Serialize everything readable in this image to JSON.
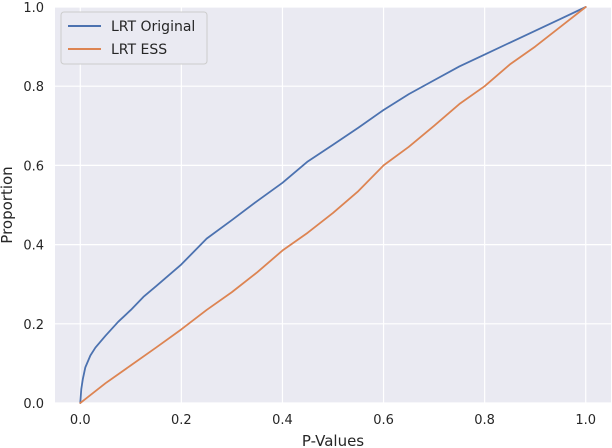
{
  "chart_data": {
    "type": "line",
    "title": "",
    "xlabel": "P-Values",
    "ylabel": "Proportion",
    "xlim": [
      -0.05,
      1.05
    ],
    "ylim": [
      0.0,
      1.0
    ],
    "xticks": [
      "0.0",
      "0.2",
      "0.4",
      "0.6",
      "0.8",
      "1.0"
    ],
    "yticks": [
      "0.0",
      "0.2",
      "0.4",
      "0.6",
      "0.8",
      "1.0"
    ],
    "grid": true,
    "legend": "top-left",
    "colors": {
      "background": "#eaeaf2",
      "grid": "#ffffff",
      "LRT Original": "#4c72b0",
      "LRT ESS": "#dd8452"
    },
    "series": [
      {
        "name": "LRT Original",
        "x": [
          0.0,
          0.002,
          0.005,
          0.01,
          0.02,
          0.03,
          0.05,
          0.075,
          0.1,
          0.125,
          0.15,
          0.2,
          0.25,
          0.3,
          0.35,
          0.4,
          0.45,
          0.5,
          0.55,
          0.6,
          0.65,
          0.7,
          0.75,
          0.8,
          0.85,
          0.9,
          0.95,
          1.0
        ],
        "y": [
          0.0,
          0.035,
          0.06,
          0.09,
          0.12,
          0.14,
          0.17,
          0.205,
          0.235,
          0.268,
          0.295,
          0.35,
          0.415,
          0.462,
          0.51,
          0.556,
          0.61,
          0.652,
          0.695,
          0.74,
          0.78,
          0.815,
          0.85,
          0.88,
          0.91,
          0.94,
          0.97,
          1.0
        ]
      },
      {
        "name": "LRT ESS",
        "x": [
          0.0,
          0.01,
          0.05,
          0.1,
          0.15,
          0.2,
          0.25,
          0.3,
          0.35,
          0.4,
          0.45,
          0.5,
          0.55,
          0.6,
          0.65,
          0.7,
          0.75,
          0.8,
          0.85,
          0.9,
          0.95,
          1.0
        ],
        "y": [
          0.0,
          0.01,
          0.05,
          0.095,
          0.14,
          0.186,
          0.235,
          0.28,
          0.33,
          0.385,
          0.43,
          0.48,
          0.535,
          0.6,
          0.647,
          0.7,
          0.755,
          0.8,
          0.855,
          0.9,
          0.95,
          1.0
        ]
      }
    ]
  }
}
